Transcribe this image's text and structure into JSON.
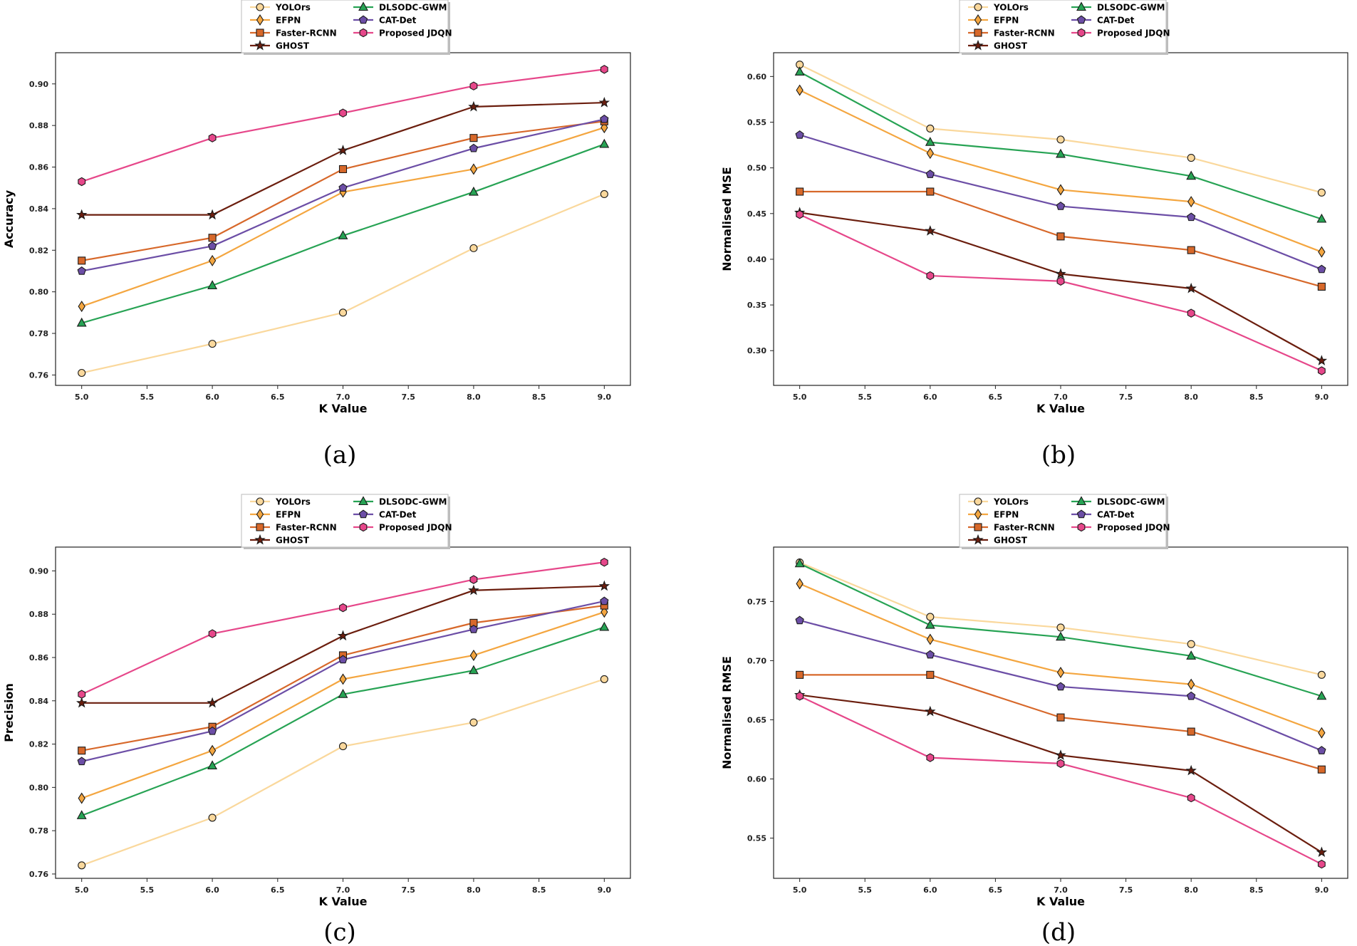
{
  "legend": [
    "YOLOrs",
    "DLSODC-GWM",
    "EFPN",
    "CAT-Det",
    "Faster-RCNN",
    "Proposed JDQN",
    "GHOST"
  ],
  "series_styles": [
    {
      "name": "YOLOrs",
      "color": "#fad89c",
      "marker": "circle"
    },
    {
      "name": "EFPN",
      "color": "#f4a640",
      "marker": "diamond"
    },
    {
      "name": "Faster-RCNN",
      "color": "#d7682a",
      "marker": "square"
    },
    {
      "name": "GHOST",
      "color": "#6b1e0e",
      "marker": "star"
    },
    {
      "name": "DLSODC-GWM",
      "color": "#27a354",
      "marker": "triangle"
    },
    {
      "name": "CAT-Det",
      "color": "#6c4ea6",
      "marker": "pentagon"
    },
    {
      "name": "Proposed JDQN",
      "color": "#e6478a",
      "marker": "hexagon"
    }
  ],
  "chart_data": [
    {
      "id": "a",
      "caption": "(a)",
      "type": "line",
      "xlabel": "K Value",
      "ylabel": "Accuracy",
      "xlim": [
        4.8,
        9.2
      ],
      "ylim": [
        0.755,
        0.915
      ],
      "xticks": [
        "5.0",
        "5.5",
        "6.0",
        "6.5",
        "7.0",
        "7.5",
        "8.0",
        "8.5",
        "9.0"
      ],
      "yticks": [
        "0.76",
        "0.78",
        "0.80",
        "0.82",
        "0.84",
        "0.86",
        "0.88",
        "0.90"
      ],
      "x": [
        5,
        6,
        7,
        8,
        9
      ],
      "series": [
        {
          "name": "YOLOrs",
          "values": [
            0.761,
            0.775,
            0.79,
            0.821,
            0.847
          ]
        },
        {
          "name": "EFPN",
          "values": [
            0.793,
            0.815,
            0.848,
            0.859,
            0.879
          ]
        },
        {
          "name": "Faster-RCNN",
          "values": [
            0.815,
            0.826,
            0.859,
            0.874,
            0.882
          ]
        },
        {
          "name": "GHOST",
          "values": [
            0.837,
            0.837,
            0.868,
            0.889,
            0.891
          ]
        },
        {
          "name": "DLSODC-GWM",
          "values": [
            0.785,
            0.803,
            0.827,
            0.848,
            0.871
          ]
        },
        {
          "name": "CAT-Det",
          "values": [
            0.81,
            0.822,
            0.85,
            0.869,
            0.883
          ]
        },
        {
          "name": "Proposed JDQN",
          "values": [
            0.853,
            0.874,
            0.886,
            0.899,
            0.907
          ]
        }
      ]
    },
    {
      "id": "b",
      "caption": "(b)",
      "type": "line",
      "xlabel": "K Value",
      "ylabel": "Normalised MSE",
      "xlim": [
        4.8,
        9.2
      ],
      "ylim": [
        0.262,
        0.626
      ],
      "xticks": [
        "5.0",
        "5.5",
        "6.0",
        "6.5",
        "7.0",
        "7.5",
        "8.0",
        "8.5",
        "9.0"
      ],
      "yticks": [
        "0.30",
        "0.35",
        "0.40",
        "0.45",
        "0.50",
        "0.55",
        "0.60"
      ],
      "x": [
        5,
        6,
        7,
        8,
        9
      ],
      "series": [
        {
          "name": "YOLOrs",
          "values": [
            0.613,
            0.543,
            0.531,
            0.511,
            0.473
          ]
        },
        {
          "name": "EFPN",
          "values": [
            0.585,
            0.516,
            0.476,
            0.463,
            0.408
          ]
        },
        {
          "name": "Faster-RCNN",
          "values": [
            0.474,
            0.474,
            0.425,
            0.41,
            0.37
          ]
        },
        {
          "name": "GHOST",
          "values": [
            0.451,
            0.431,
            0.384,
            0.368,
            0.289
          ]
        },
        {
          "name": "DLSODC-GWM",
          "values": [
            0.605,
            0.528,
            0.515,
            0.491,
            0.444
          ]
        },
        {
          "name": "CAT-Det",
          "values": [
            0.536,
            0.493,
            0.458,
            0.446,
            0.389
          ]
        },
        {
          "name": "Proposed JDQN",
          "values": [
            0.449,
            0.382,
            0.376,
            0.341,
            0.278
          ]
        }
      ]
    },
    {
      "id": "c",
      "caption": "(c)",
      "type": "line",
      "xlabel": "K Value",
      "ylabel": "Precision",
      "xlim": [
        4.8,
        9.2
      ],
      "ylim": [
        0.758,
        0.911
      ],
      "xticks": [
        "5.0",
        "5.5",
        "6.0",
        "6.5",
        "7.0",
        "7.5",
        "8.0",
        "8.5",
        "9.0"
      ],
      "yticks": [
        "0.76",
        "0.78",
        "0.80",
        "0.82",
        "0.84",
        "0.86",
        "0.88",
        "0.90"
      ],
      "x": [
        5,
        6,
        7,
        8,
        9
      ],
      "series": [
        {
          "name": "YOLOrs",
          "values": [
            0.764,
            0.786,
            0.819,
            0.83,
            0.85
          ]
        },
        {
          "name": "EFPN",
          "values": [
            0.795,
            0.817,
            0.85,
            0.861,
            0.881
          ]
        },
        {
          "name": "Faster-RCNN",
          "values": [
            0.817,
            0.828,
            0.861,
            0.876,
            0.884
          ]
        },
        {
          "name": "GHOST",
          "values": [
            0.839,
            0.839,
            0.87,
            0.891,
            0.893
          ]
        },
        {
          "name": "DLSODC-GWM",
          "values": [
            0.787,
            0.81,
            0.843,
            0.854,
            0.874
          ]
        },
        {
          "name": "CAT-Det",
          "values": [
            0.812,
            0.826,
            0.859,
            0.873,
            0.886
          ]
        },
        {
          "name": "Proposed JDQN",
          "values": [
            0.843,
            0.871,
            0.883,
            0.896,
            0.904
          ]
        }
      ]
    },
    {
      "id": "d",
      "caption": "(d)",
      "type": "line",
      "xlabel": "K Value",
      "ylabel": "Normalised RMSE",
      "xlim": [
        4.8,
        9.2
      ],
      "ylim": [
        0.516,
        0.796
      ],
      "xticks": [
        "5.0",
        "5.5",
        "6.0",
        "6.5",
        "7.0",
        "7.5",
        "8.0",
        "8.5",
        "9.0"
      ],
      "yticks": [
        "0.55",
        "0.60",
        "0.65",
        "0.70",
        "0.75"
      ],
      "x": [
        5,
        6,
        7,
        8,
        9
      ],
      "series": [
        {
          "name": "YOLOrs",
          "values": [
            0.783,
            0.737,
            0.728,
            0.714,
            0.688
          ]
        },
        {
          "name": "EFPN",
          "values": [
            0.765,
            0.718,
            0.69,
            0.68,
            0.639
          ]
        },
        {
          "name": "Faster-RCNN",
          "values": [
            0.688,
            0.688,
            0.652,
            0.64,
            0.608
          ]
        },
        {
          "name": "GHOST",
          "values": [
            0.671,
            0.657,
            0.62,
            0.607,
            0.538
          ]
        },
        {
          "name": "DLSODC-GWM",
          "values": [
            0.782,
            0.73,
            0.72,
            0.704,
            0.67
          ]
        },
        {
          "name": "CAT-Det",
          "values": [
            0.734,
            0.705,
            0.678,
            0.67,
            0.624
          ]
        },
        {
          "name": "Proposed JDQN",
          "values": [
            0.67,
            0.618,
            0.613,
            0.584,
            0.528
          ]
        }
      ]
    }
  ]
}
